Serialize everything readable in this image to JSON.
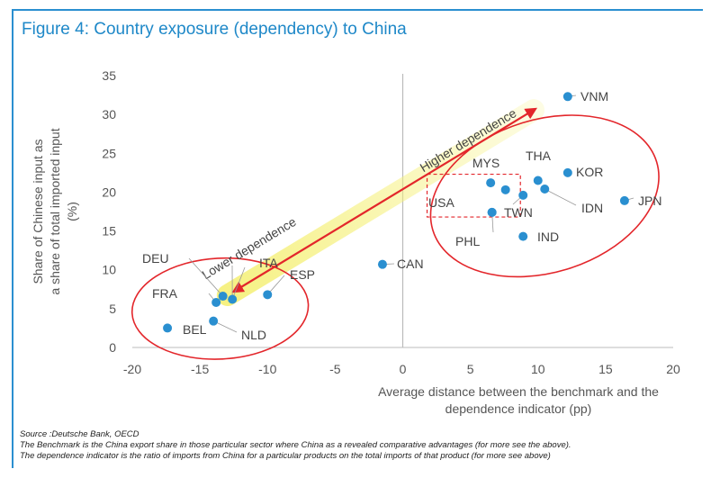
{
  "figure_title": "Figure 4: Country exposure (dependency) to China",
  "chart_data": {
    "type": "scatter",
    "title": "Figure 4: Country exposure (dependency) to China",
    "xlabel": "Average distance between the benchmark and the dependence indicator (pp)",
    "ylabel": "Share of Chinese input as a share of total imported input (%)",
    "ylabel_lines": [
      "Share of Chinese input as",
      "a share of total imported input",
      "(%)"
    ],
    "xlabel_lines": [
      "Average distance between the benchmark and the",
      "dependence indicator (pp)"
    ],
    "xlim": [
      -20,
      20
    ],
    "ylim": [
      0,
      35
    ],
    "xticks": [
      -20,
      -15,
      -10,
      -5,
      0,
      5,
      10,
      15,
      20
    ],
    "yticks": [
      0,
      5,
      10,
      15,
      20,
      25,
      30,
      35
    ],
    "points": [
      {
        "label": "VNM",
        "x": 12.2,
        "y": 32.3
      },
      {
        "label": "JPN",
        "x": 16.4,
        "y": 18.9
      },
      {
        "label": "KOR",
        "x": 12.2,
        "y": 22.5
      },
      {
        "label": "THA",
        "x": 10.0,
        "y": 21.5
      },
      {
        "label": "IDN",
        "x": 10.5,
        "y": 20.4
      },
      {
        "label": "MYS",
        "x": 6.5,
        "y": 21.2
      },
      {
        "label": "USA",
        "x": 7.6,
        "y": 20.3
      },
      {
        "label": "",
        "x": 8.9,
        "y": 19.6
      },
      {
        "label": "TWN",
        "x": 6.6,
        "y": 17.4
      },
      {
        "label": "PHL",
        "x": 6.6,
        "y": 17.4
      },
      {
        "label": "IND",
        "x": 8.9,
        "y": 14.3
      },
      {
        "label": "CAN",
        "x": -1.5,
        "y": 10.7
      },
      {
        "label": "ESP",
        "x": -10.0,
        "y": 6.8
      },
      {
        "label": "ITA",
        "x": -12.6,
        "y": 6.2
      },
      {
        "label": "DEU",
        "x": -13.3,
        "y": 6.6
      },
      {
        "label": "FRA",
        "x": -13.8,
        "y": 5.8
      },
      {
        "label": "NLD",
        "x": -14.0,
        "y": 3.4
      },
      {
        "label": "BEL",
        "x": -17.4,
        "y": 2.5
      }
    ],
    "annotations": [
      {
        "text": "Higher dependence",
        "kind": "arrow-label"
      },
      {
        "text": "Lower dependence",
        "kind": "arrow-label"
      }
    ]
  },
  "footnotes": {
    "source": "Source :Deutsche Bank, OECD",
    "line1": "The Benchmark is the China export share in those particular sector where China as a revealed comparative advantages (for more see the above).",
    "line2": "The dependence indicator is the ratio of imports from China for a particular products on the total imports of that product (for more see above)"
  },
  "colors": {
    "accent": "#1e88c8",
    "point": "#2a8fd0",
    "ellipse": "#e3262b",
    "arrow": "#e3262b",
    "highlight": "#f5f07a"
  }
}
